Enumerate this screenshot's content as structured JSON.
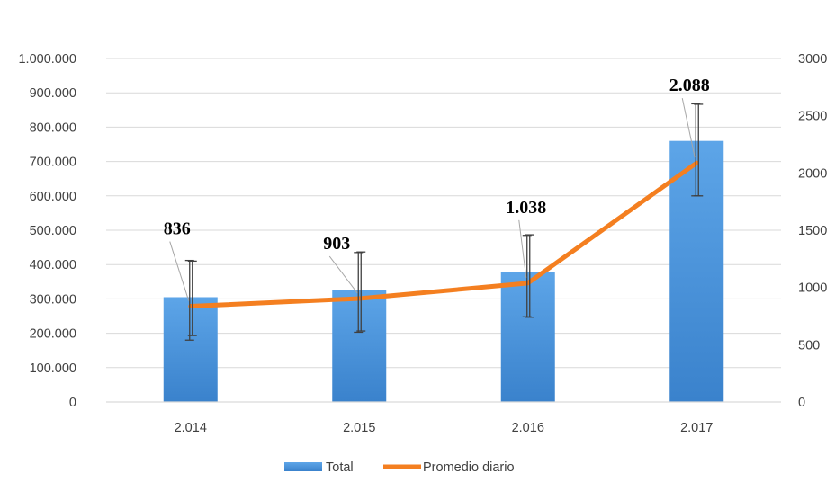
{
  "chart_data": {
    "type": "bar",
    "categories": [
      "2.014",
      "2.015",
      "2.016",
      "2.017"
    ],
    "series": [
      {
        "name": "Total",
        "type": "bar",
        "axis": "left",
        "values": [
          305000,
          327000,
          378000,
          760000
        ],
        "error_bars": [
          [
            180000,
            412000
          ],
          [
            203000,
            435000
          ],
          [
            248000,
            485000
          ],
          [
            600000,
            868000
          ]
        ],
        "color": "#4A90D9"
      },
      {
        "name": "Promedio diario",
        "type": "line",
        "axis": "right",
        "values": [
          836,
          903,
          1038,
          2088
        ],
        "data_labels": [
          "836",
          "903",
          "1.038",
          "2.088"
        ],
        "error_bars": [
          [
            580,
            1230
          ],
          [
            620,
            1310
          ],
          [
            740,
            1460
          ],
          [
            1800,
            2600
          ]
        ],
        "color": "#F47F20"
      }
    ],
    "y_left": {
      "min": 0,
      "max": 1000000,
      "ticks": [
        0,
        100000,
        200000,
        300000,
        400000,
        500000,
        600000,
        700000,
        800000,
        900000,
        1000000
      ],
      "tick_labels": [
        "0",
        "100.000",
        "200.000",
        "300.000",
        "400.000",
        "500.000",
        "600.000",
        "700.000",
        "800.000",
        "900.000",
        "1.000.000"
      ]
    },
    "y_right": {
      "min": 0,
      "max": 3000,
      "ticks": [
        0,
        500,
        1000,
        1500,
        2000,
        2500,
        3000
      ],
      "tick_labels": [
        "0",
        "500",
        "1000",
        "1500",
        "2000",
        "2500",
        "3000"
      ]
    },
    "grid": true,
    "legend_position": "bottom",
    "title": "",
    "xlabel": "",
    "ylabel": ""
  },
  "legend": {
    "items": [
      {
        "label": "Total",
        "color": "#4A90D9",
        "kind": "bar"
      },
      {
        "label": "Promedio diario",
        "color": "#F47F20",
        "kind": "line"
      }
    ]
  }
}
